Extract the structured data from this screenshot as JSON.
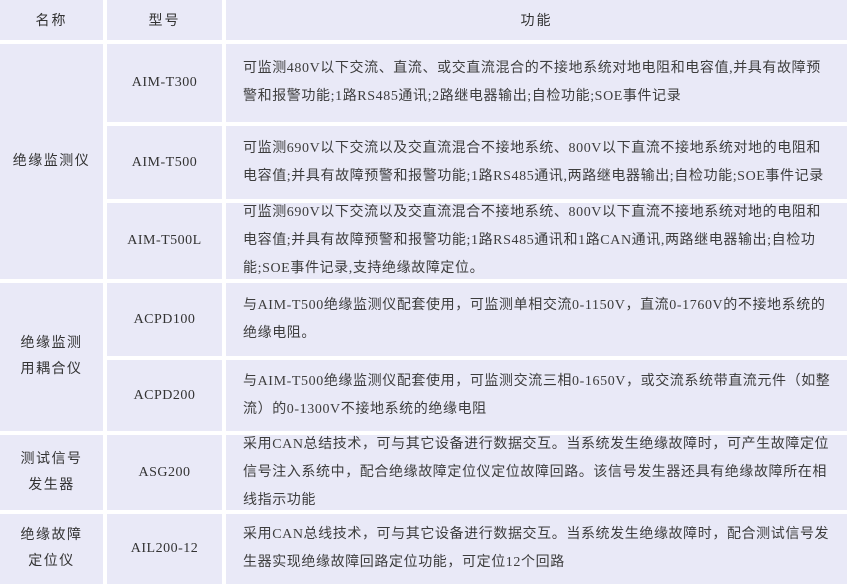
{
  "table": {
    "headers": {
      "name": "名称",
      "model": "型号",
      "function": "功能"
    },
    "groups": [
      {
        "name": "绝缘监测仪",
        "rows": [
          {
            "model": "AIM-T300",
            "function": "可监测480V以下交流、直流、或交直流混合的不接地系统对地电阻和电容值,并具有故障预警和报警功能;1路RS485通讯;2路继电器输出;自检功能;SOE事件记录"
          },
          {
            "model": "AIM-T500",
            "function": "可监测690V以下交流以及交直流混合不接地系统、800V以下直流不接地系统对地的电阻和电容值;并具有故障预警和报警功能;1路RS485通讯,两路继电器输出;自检功能;SOE事件记录"
          },
          {
            "model": "AIM-T500L",
            "function": "可监测690V以下交流以及交直流混合不接地系统、800V以下直流不接地系统对地的电阻和电容值;并具有故障预警和报警功能;1路RS485通讯和1路CAN通讯,两路继电器输出;自检功能;SOE事件记录,支持绝缘故障定位。"
          }
        ]
      },
      {
        "name": "绝缘监测\n用耦合仪",
        "rows": [
          {
            "model": "ACPD100",
            "function": "与AIM-T500绝缘监测仪配套使用，可监测单相交流0-1150V，直流0-1760V的不接地系统的绝缘电阻。"
          },
          {
            "model": "ACPD200",
            "function": "与AIM-T500绝缘监测仪配套使用，可监测交流三相0-1650V，或交流系统带直流元件（如整流）的0-1300V不接地系统的绝缘电阻"
          }
        ]
      },
      {
        "name": "测试信号\n发生器",
        "rows": [
          {
            "model": "ASG200",
            "function": "采用CAN总结技术，可与其它设备进行数据交互。当系统发生绝缘故障时，可产生故障定位信号注入系统中，配合绝缘故障定位仪定位故障回路。该信号发生器还具有绝缘故障所在相线指示功能"
          }
        ]
      },
      {
        "name": "绝缘故障\n定位仪",
        "rows": [
          {
            "model": "AIL200-12",
            "function": "采用CAN总线技术，可与其它设备进行数据交互。当系统发生绝缘故障时，配合测试信号发生器实现绝缘故障回路定位功能，可定位12个回路"
          }
        ]
      }
    ],
    "colors": {
      "cell_background": "#e9e9f7",
      "grid_gap": "#ffffff",
      "text": "#3a3a3a"
    }
  }
}
